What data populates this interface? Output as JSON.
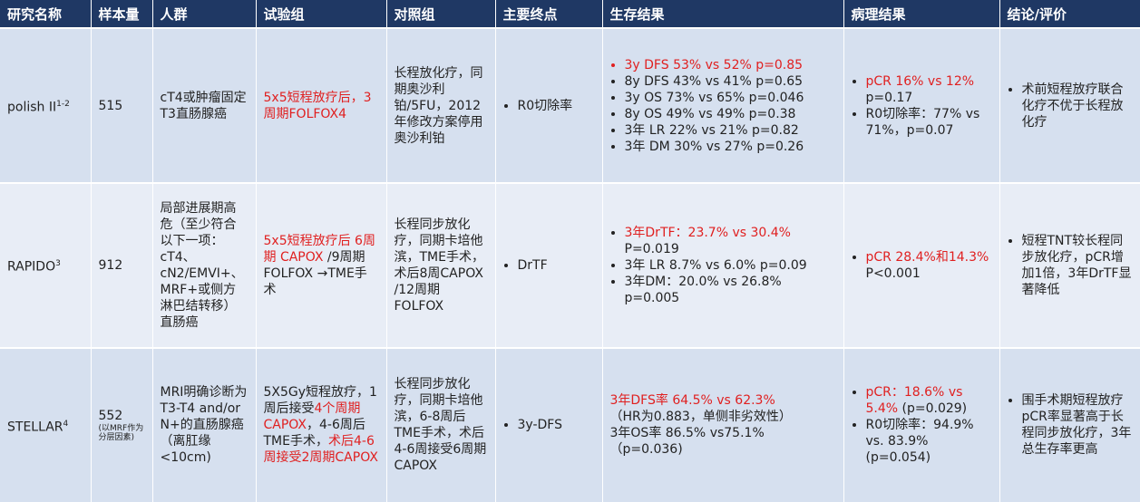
{
  "headers": [
    "研究名称",
    "样本量",
    "人群",
    "试验组",
    "对照组",
    "主要终点",
    "生存结果",
    "病理结果",
    "结论/评价"
  ],
  "rows": [
    {
      "study": "polish II",
      "sup": "1-2",
      "n": "515",
      "n_note": "",
      "population": "cT4或肿瘤固定T3直肠腺癌",
      "treatment_red": "5x5短程放疗后，3周期FOLFOX4",
      "control": "长程放化疗，同期奥沙利铂/5FU，2012年修改方案停用奥沙利铂",
      "endpoint": "R0切除率",
      "survival": [
        {
          "text": "3y DFS 53% vs 52% p=0.85",
          "red": true
        },
        {
          "text": "8y DFS 43% vs 41% p=0.65",
          "red": false
        },
        {
          "text": "3y OS 73% vs 65% p=0.046",
          "red": false
        },
        {
          "text": "8y OS 49% vs 49% p=0.38",
          "red": false
        },
        {
          "text": "3年 LR 22% vs 21% p=0.82",
          "red": false
        },
        {
          "text": "3年 DM 30% vs 27% p=0.26",
          "red": false
        }
      ],
      "pathology": [
        {
          "red": "pCR 16% vs 12%",
          "black": " p=0.17"
        },
        {
          "red": "",
          "black": "R0切除率：77% vs 71%，p=0.07"
        }
      ],
      "conclusion": "术前短程放疗联合化疗不优于长程放化疗"
    },
    {
      "study": "RAPIDO",
      "sup": "3",
      "n": "912",
      "n_note": "",
      "population": "局部进展期高危（至少符合以下一项：cT4、cN2/EMVI+、MRF+或侧方淋巴结转移）直肠癌",
      "treatment_red": "5x5短程放疗后 6周期 CAPOX",
      "treatment_black": " /9周期FOLFOX →TME手术",
      "control": "长程同步放化疗，同期卡培他滨，TME手术，术后8周CAPOX /12周期FOLFOX",
      "endpoint": "DrTF",
      "survival": [
        {
          "text": "3年DrTF：23.7% vs 30.4%",
          "red": true,
          "cont": "P=0.019"
        },
        {
          "text": "3年 LR 8.7% vs 6.0% p=0.09",
          "red": false
        },
        {
          "text": "3年DM：20.0% vs 26.8%",
          "red": false,
          "cont": "p=0.005"
        }
      ],
      "pathology": [
        {
          "red": "pCR 28.4%和14.3%",
          "black": " P<0.001"
        }
      ],
      "conclusion": "短程TNT较长程同步放化疗，pCR增加1倍，3年DrTF显著降低"
    },
    {
      "study": "STELLAR",
      "sup": "4",
      "n": "552",
      "n_note": "(以MRF作为分层因素)",
      "population": "MRI明确诊断为T3-T4 and/or N+的直肠腺癌（离肛缘<10cm)",
      "t_parts": [
        {
          "text": "5X5Gy短程放疗，1周后接受",
          "red": false
        },
        {
          "text": "4个周期CAPOX",
          "red": true
        },
        {
          "text": "，4-6周后TME手术，",
          "red": false
        },
        {
          "text": "术后4-6周接受2周期CAPOX",
          "red": true
        }
      ],
      "control": "长程同步放化疗，同期卡培他滨，6-8周后TME手术，术后4-6周接受6周期CAPOX",
      "endpoint": "3y-DFS",
      "survival_plain": [
        {
          "text": "3年DFS率 64.5% vs 62.3%",
          "red": true
        },
        {
          "text": "（HR为0.883，单侧非劣效性）",
          "red": false
        },
        {
          "text": "3年OS率 86.5% vs75.1%",
          "red": false
        },
        {
          "text": "（p=0.036)",
          "red": false
        }
      ],
      "pathology": [
        {
          "red": "pCR：18.6% vs 5.4%",
          "black": " (p=0.029)"
        },
        {
          "red": "",
          "black": "R0切除率：94.9% vs. 83.9% (p=0.054)"
        }
      ],
      "conclusion": "围手术期短程放疗pCR率显著高于长程同步放化疗，3年总生存率更高"
    }
  ]
}
